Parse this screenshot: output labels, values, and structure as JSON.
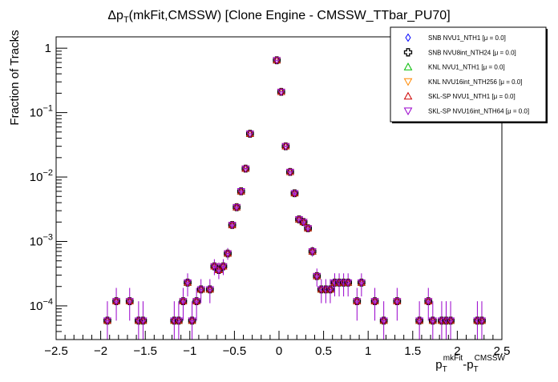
{
  "chart_data": {
    "type": "scatter",
    "title_main": "Δp",
    "title_sub": "T",
    "title_rest": "(mkFit,CMSSW) [Clone Engine - CMSSW_TTbar_PU70]",
    "ylabel": "Fraction of Tracks",
    "xlabel": {
      "p1": "p",
      "s1": "T",
      "sup1": "mkFit",
      "dash": "-",
      "p2": "p",
      "s2": "T",
      "sup2": "CMSSW"
    },
    "xlim": [
      -2.5,
      2.5
    ],
    "ylim": [
      3e-05,
      1.5
    ],
    "yscale": "log",
    "x_ticks": [
      "−2.5",
      "−2",
      "−1.5",
      "−1",
      "−0.5",
      "0",
      "0.5",
      "1",
      "1.5",
      "2",
      "2.5"
    ],
    "x_tick_values": [
      -2.5,
      -2,
      -1.5,
      -1,
      -0.5,
      0,
      0.5,
      1,
      1.5,
      2,
      2.5
    ],
    "y_ticks": [
      {
        "value": 1,
        "base": "1",
        "exp": ""
      },
      {
        "value": 0.1,
        "base": "10",
        "exp": "−1"
      },
      {
        "value": 0.01,
        "base": "10",
        "exp": "−2"
      },
      {
        "value": 0.001,
        "base": "10",
        "exp": "−3"
      },
      {
        "value": 0.0001,
        "base": "10",
        "exp": "−4"
      }
    ],
    "legend": [
      {
        "label": "SNB NVU1_NTH1 [μ =  0.0]",
        "marker": "diamond",
        "color": "#0000ff"
      },
      {
        "label": "SNB NVU8int_NTH24 [μ =  0.0]",
        "marker": "cross",
        "color": "#000000"
      },
      {
        "label": "KNL NVU1_NTH1 [μ =  0.0]",
        "marker": "triangle-up",
        "color": "#00bb00"
      },
      {
        "label": "KNL NVU16int_NTH256 [μ =  0.0]",
        "marker": "triangle-down",
        "color": "#ff8800"
      },
      {
        "label": "SKL-SP NVU1_NTH1 [μ =  0.0]",
        "marker": "triangle-up",
        "color": "#cc0000"
      },
      {
        "label": "SKL-SP NVU16int_NTH64 [μ =  0.0]",
        "marker": "triangle-down",
        "color": "#9900cc"
      }
    ],
    "legend_position": "top-right",
    "errorbar_color": "#9900cc",
    "points": [
      {
        "x": -1.925,
        "y": 5.9e-05,
        "lo": 3e-05,
        "hi": 0.000118
      },
      {
        "x": -1.825,
        "y": 0.000118,
        "lo": 5.9e-05,
        "hi": 0.00019
      },
      {
        "x": -1.675,
        "y": 0.000118,
        "lo": 5.9e-05,
        "hi": 0.00019
      },
      {
        "x": -1.575,
        "y": 5.9e-05,
        "lo": 3e-05,
        "hi": 0.000118
      },
      {
        "x": -1.525,
        "y": 5.9e-05,
        "lo": 3e-05,
        "hi": 0.000118
      },
      {
        "x": -1.175,
        "y": 5.9e-05,
        "lo": 3e-05,
        "hi": 0.000118
      },
      {
        "x": -1.125,
        "y": 5.9e-05,
        "lo": 3e-05,
        "hi": 0.000118
      },
      {
        "x": -1.075,
        "y": 0.000118,
        "lo": 5.9e-05,
        "hi": 0.00019
      },
      {
        "x": -1.025,
        "y": 0.00023,
        "lo": 0.00014,
        "hi": 0.00032
      },
      {
        "x": -0.975,
        "y": 5.9e-05,
        "lo": 3e-05,
        "hi": 0.000118
      },
      {
        "x": -0.925,
        "y": 0.000118,
        "lo": 5.9e-05,
        "hi": 0.00019
      },
      {
        "x": -0.875,
        "y": 0.00018,
        "lo": 0.00011,
        "hi": 0.00026
      },
      {
        "x": -0.775,
        "y": 0.00018,
        "lo": 0.00011,
        "hi": 0.00026
      },
      {
        "x": -0.725,
        "y": 0.00041,
        "lo": 0.0003,
        "hi": 0.00053
      },
      {
        "x": -0.675,
        "y": 0.00036,
        "lo": 0.00026,
        "hi": 0.00047
      },
      {
        "x": -0.625,
        "y": 0.00041,
        "lo": 0.0003,
        "hi": 0.00053
      },
      {
        "x": -0.575,
        "y": 0.00065,
        "lo": 0.00052,
        "hi": 0.00079
      },
      {
        "x": -0.525,
        "y": 0.0018,
        "lo": 0.0016,
        "hi": 0.002
      },
      {
        "x": -0.475,
        "y": 0.0034,
        "lo": 0.0031,
        "hi": 0.0037
      },
      {
        "x": -0.425,
        "y": 0.006,
        "lo": 0.0056,
        "hi": 0.0064
      },
      {
        "x": -0.375,
        "y": 0.0135,
        "lo": 0.013,
        "hi": 0.014
      },
      {
        "x": -0.325,
        "y": 0.047,
        "lo": 0.046,
        "hi": 0.048
      },
      {
        "x": -0.025,
        "y": 0.65,
        "lo": 0.64,
        "hi": 0.66
      },
      {
        "x": 0.025,
        "y": 0.21,
        "lo": 0.205,
        "hi": 0.215
      },
      {
        "x": 0.075,
        "y": 0.03,
        "lo": 0.0292,
        "hi": 0.0308
      },
      {
        "x": 0.125,
        "y": 0.012,
        "lo": 0.0115,
        "hi": 0.0125
      },
      {
        "x": 0.175,
        "y": 0.0056,
        "lo": 0.0052,
        "hi": 0.006
      },
      {
        "x": 0.225,
        "y": 0.0022,
        "lo": 0.002,
        "hi": 0.0024
      },
      {
        "x": 0.275,
        "y": 0.002,
        "lo": 0.0018,
        "hi": 0.0022
      },
      {
        "x": 0.325,
        "y": 0.0016,
        "lo": 0.0014,
        "hi": 0.0018
      },
      {
        "x": 0.375,
        "y": 0.0007,
        "lo": 0.00058,
        "hi": 0.00083
      },
      {
        "x": 0.425,
        "y": 0.00029,
        "lo": 0.0002,
        "hi": 0.00038
      },
      {
        "x": 0.475,
        "y": 0.00018,
        "lo": 0.00011,
        "hi": 0.00026
      },
      {
        "x": 0.525,
        "y": 0.00018,
        "lo": 0.00011,
        "hi": 0.00026
      },
      {
        "x": 0.575,
        "y": 0.00018,
        "lo": 0.00011,
        "hi": 0.00026
      },
      {
        "x": 0.625,
        "y": 0.00023,
        "lo": 0.00014,
        "hi": 0.00032
      },
      {
        "x": 0.675,
        "y": 0.00023,
        "lo": 0.00014,
        "hi": 0.00032
      },
      {
        "x": 0.725,
        "y": 0.00023,
        "lo": 0.00014,
        "hi": 0.00032
      },
      {
        "x": 0.775,
        "y": 0.00023,
        "lo": 0.00014,
        "hi": 0.00032
      },
      {
        "x": 0.875,
        "y": 0.000118,
        "lo": 5.9e-05,
        "hi": 0.00019
      },
      {
        "x": 0.925,
        "y": 0.00023,
        "lo": 0.00014,
        "hi": 0.00032
      },
      {
        "x": 1.075,
        "y": 0.000118,
        "lo": 5.9e-05,
        "hi": 0.00019
      },
      {
        "x": 1.175,
        "y": 5.9e-05,
        "lo": 3e-05,
        "hi": 0.000118
      },
      {
        "x": 1.325,
        "y": 0.000118,
        "lo": 5.9e-05,
        "hi": 0.00019
      },
      {
        "x": 1.575,
        "y": 5.9e-05,
        "lo": 3e-05,
        "hi": 0.000118
      },
      {
        "x": 1.675,
        "y": 0.000118,
        "lo": 5.9e-05,
        "hi": 0.00019
      },
      {
        "x": 1.725,
        "y": 5.9e-05,
        "lo": 3e-05,
        "hi": 0.000118
      },
      {
        "x": 1.825,
        "y": 5.9e-05,
        "lo": 3e-05,
        "hi": 0.000118
      },
      {
        "x": 1.875,
        "y": 5.9e-05,
        "lo": 3e-05,
        "hi": 0.000118
      },
      {
        "x": 1.925,
        "y": 5.9e-05,
        "lo": 3e-05,
        "hi": 0.000118
      },
      {
        "x": 2.225,
        "y": 5.9e-05,
        "lo": 3e-05,
        "hi": 0.000118
      },
      {
        "x": 2.275,
        "y": 5.9e-05,
        "lo": 3e-05,
        "hi": 0.000118
      }
    ]
  }
}
